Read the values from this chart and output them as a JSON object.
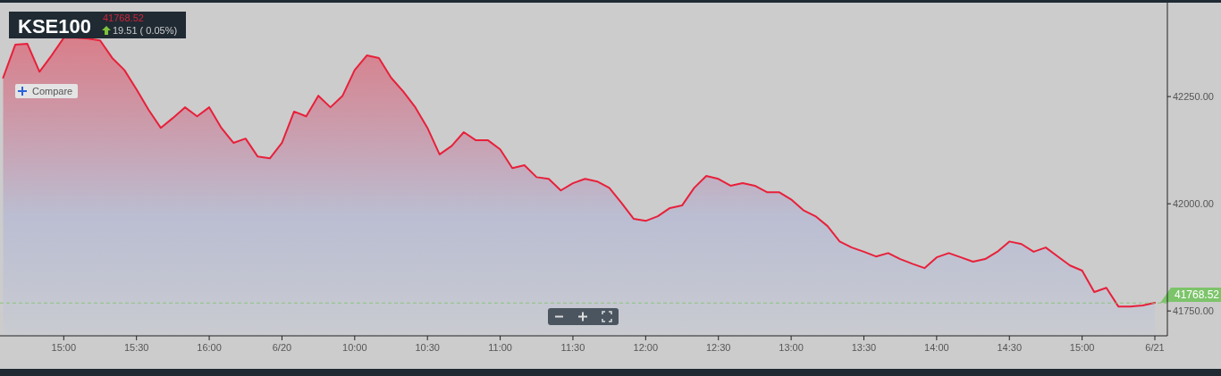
{
  "chart_data": {
    "type": "area",
    "title": "KSE100",
    "annotations": [
      "41768.52",
      "19.51 ( 0.05%)",
      "Compare"
    ],
    "categories": [
      null,
      null,
      null,
      null,
      null,
      "15:00",
      null,
      null,
      null,
      null,
      null,
      "15:30",
      null,
      null,
      null,
      null,
      null,
      "16:00",
      null,
      null,
      null,
      null,
      null,
      "6/20",
      null,
      null,
      null,
      null,
      null,
      "10:00",
      null,
      null,
      null,
      null,
      null,
      "10:30",
      null,
      null,
      null,
      null,
      null,
      "11:00",
      null,
      null,
      null,
      null,
      null,
      "11:30",
      null,
      null,
      null,
      null,
      null,
      "12:00",
      null,
      null,
      null,
      null,
      null,
      "12:30",
      null,
      null,
      null,
      null,
      null,
      "13:00",
      null,
      null,
      null,
      null,
      null,
      "13:30",
      null,
      null,
      null,
      null,
      null,
      "14:00",
      null,
      null,
      null,
      null,
      null,
      "14:30",
      null,
      null,
      null,
      null,
      null,
      "15:00",
      null,
      null,
      null,
      null,
      null,
      "6/21"
    ],
    "series": [
      {
        "color": "#e8203a",
        "values": [
          42294,
          42371,
          42373,
          42308,
          42346,
          42387,
          42387,
          42385,
          42381,
          42340,
          42312,
          42267,
          42219,
          42177,
          42200,
          42225,
          42204,
          42225,
          42177,
          42142,
          42152,
          42110,
          42106,
          42142,
          42215,
          42204,
          42252,
          42225,
          42252,
          42312,
          42346,
          42340,
          42294,
          42262,
          42225,
          42177,
          42115,
          42135,
          42167,
          42148,
          42148,
          42127,
          42083,
          42090,
          42062,
          42058,
          42031,
          42048,
          42058,
          42052,
          42037,
          42002,
          41965,
          41960,
          41971,
          41990,
          41996,
          42037,
          42065,
          42058,
          42042,
          42048,
          42042,
          42027,
          42027,
          42010,
          41985,
          41971,
          41948,
          41912,
          41898,
          41888,
          41877,
          41885,
          41871,
          41860,
          41850,
          41875,
          41885,
          41875,
          41865,
          41871,
          41888,
          41912,
          41906,
          41888,
          41898,
          41877,
          41856,
          41844,
          41794,
          41804,
          41760,
          41760,
          41763,
          41769
        ]
      }
    ],
    "ylim": [
      41692,
      42469
    ],
    "yticks": [
      {
        "value": 41750,
        "label": "41750.00"
      },
      {
        "value": 42000,
        "label": "42000.00"
      },
      {
        "value": 42250,
        "label": "42250.00"
      }
    ],
    "ref_lines": [
      {
        "axis": "y",
        "value": 41768.52,
        "label": "41768.52",
        "color": "#7cc46a",
        "line_style": "dashed"
      }
    ],
    "grid": false
  }
}
